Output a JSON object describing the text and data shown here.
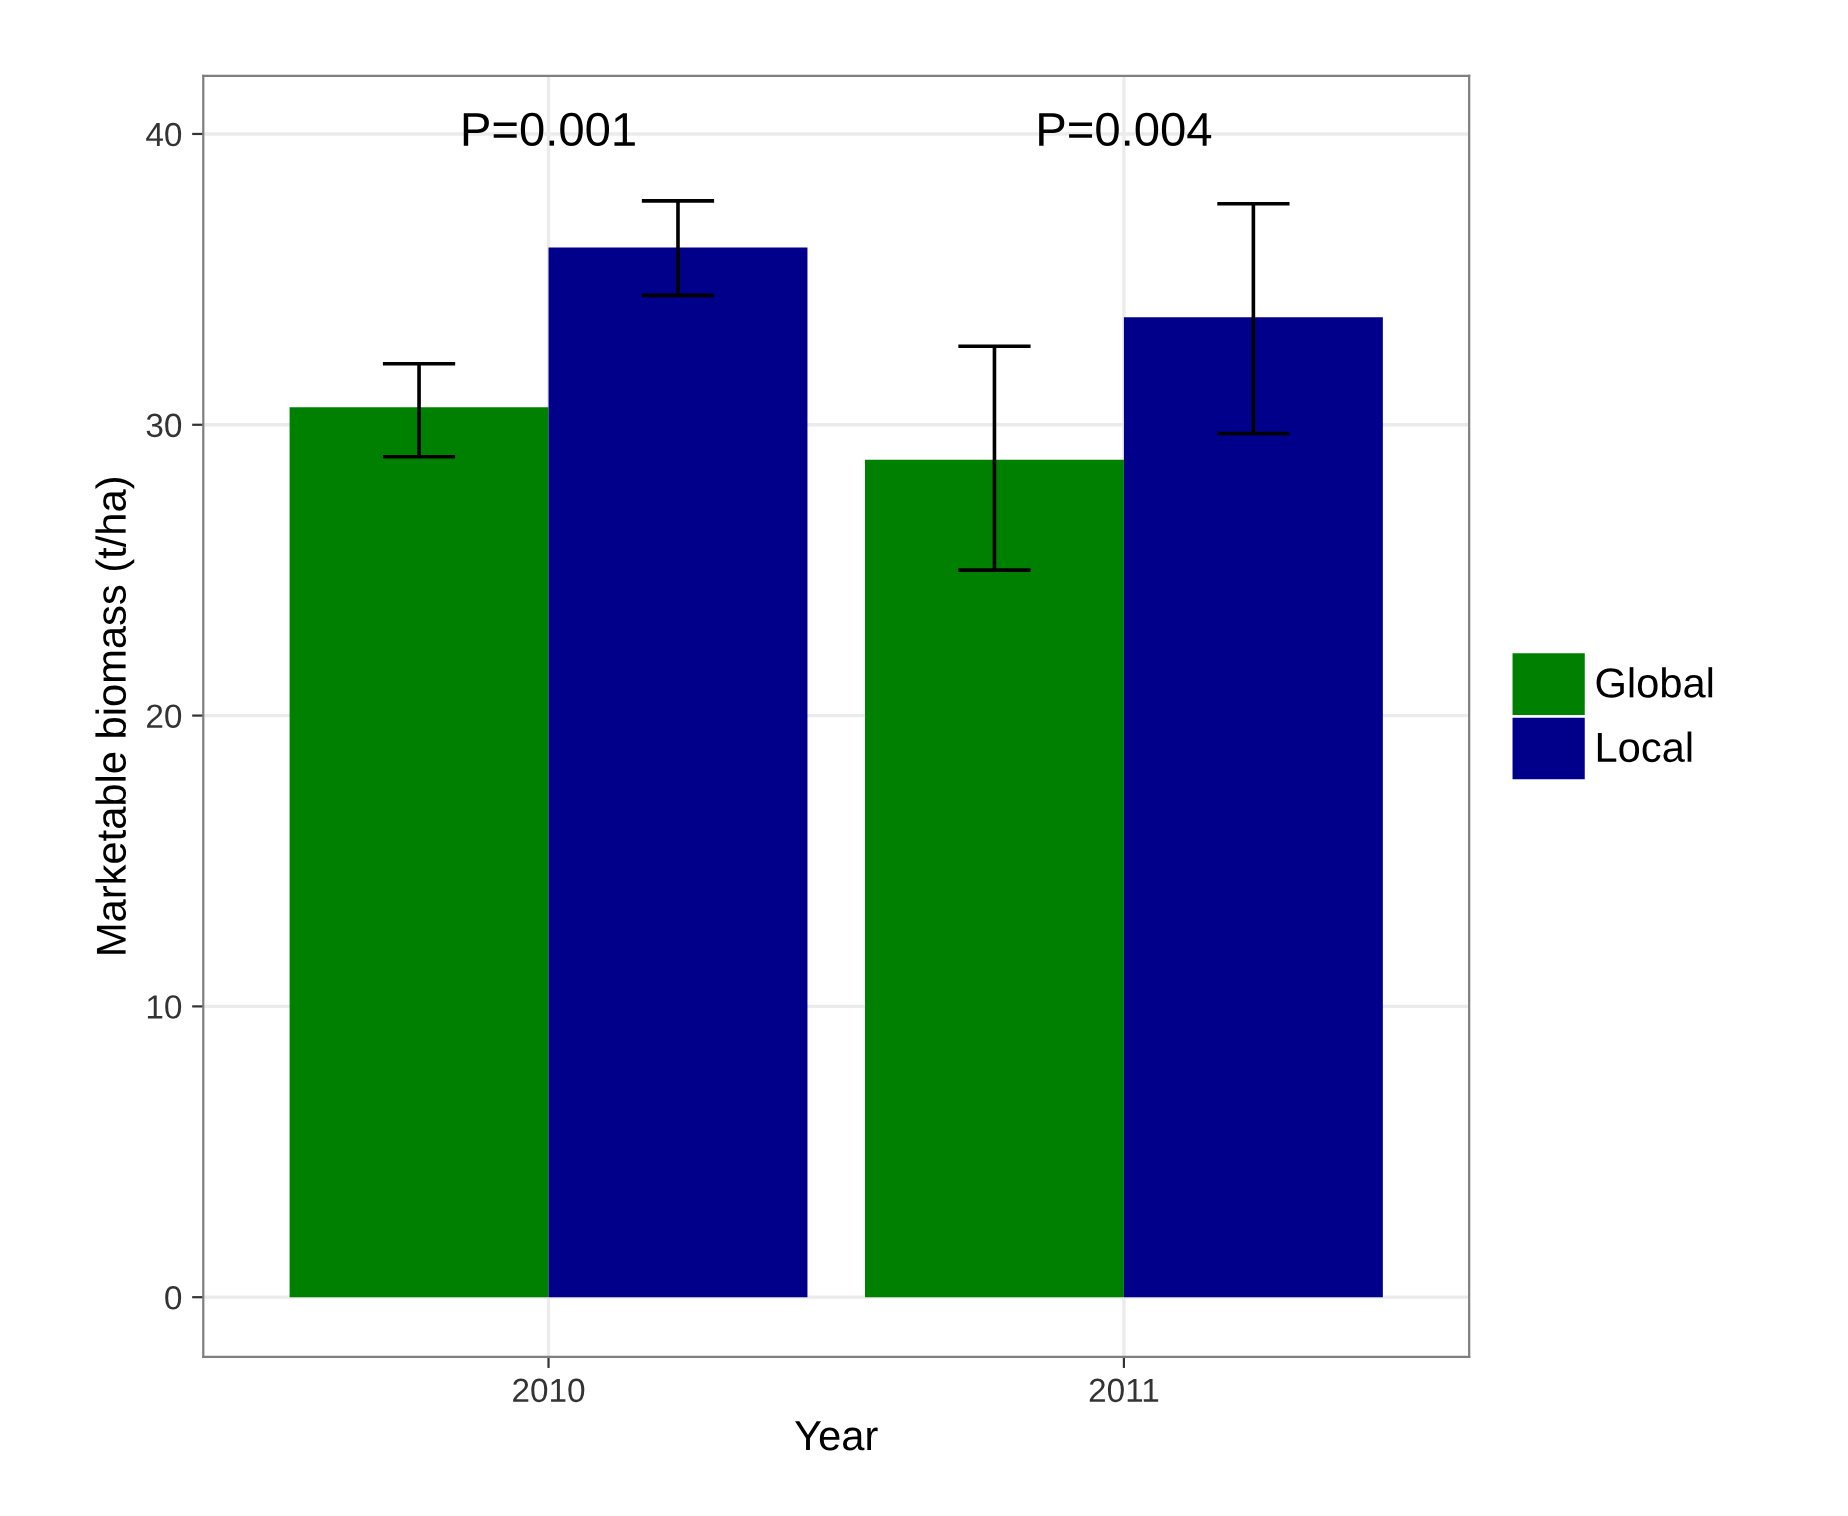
{
  "chart_data": {
    "type": "bar",
    "xlabel": "Year",
    "ylabel": "Marketable biomass (t/ha)",
    "categories": [
      "2010",
      "2011"
    ],
    "series": [
      {
        "name": "Global",
        "color": "#008000",
        "values": [
          30.6,
          28.8
        ],
        "errors": [
          [
            28.9,
            32.1
          ],
          [
            25.0,
            32.7
          ]
        ]
      },
      {
        "name": "Local",
        "color": "#00008b",
        "values": [
          36.1,
          33.7
        ],
        "errors": [
          [
            34.45,
            37.7
          ],
          [
            29.7,
            37.6
          ]
        ]
      }
    ],
    "ylim": [
      -2.05,
      42.0
    ],
    "yticks": [
      0,
      10,
      20,
      30,
      40
    ],
    "grid": true,
    "legend": "right",
    "annotations": [
      "P=0.001",
      "P=0.004"
    ]
  }
}
